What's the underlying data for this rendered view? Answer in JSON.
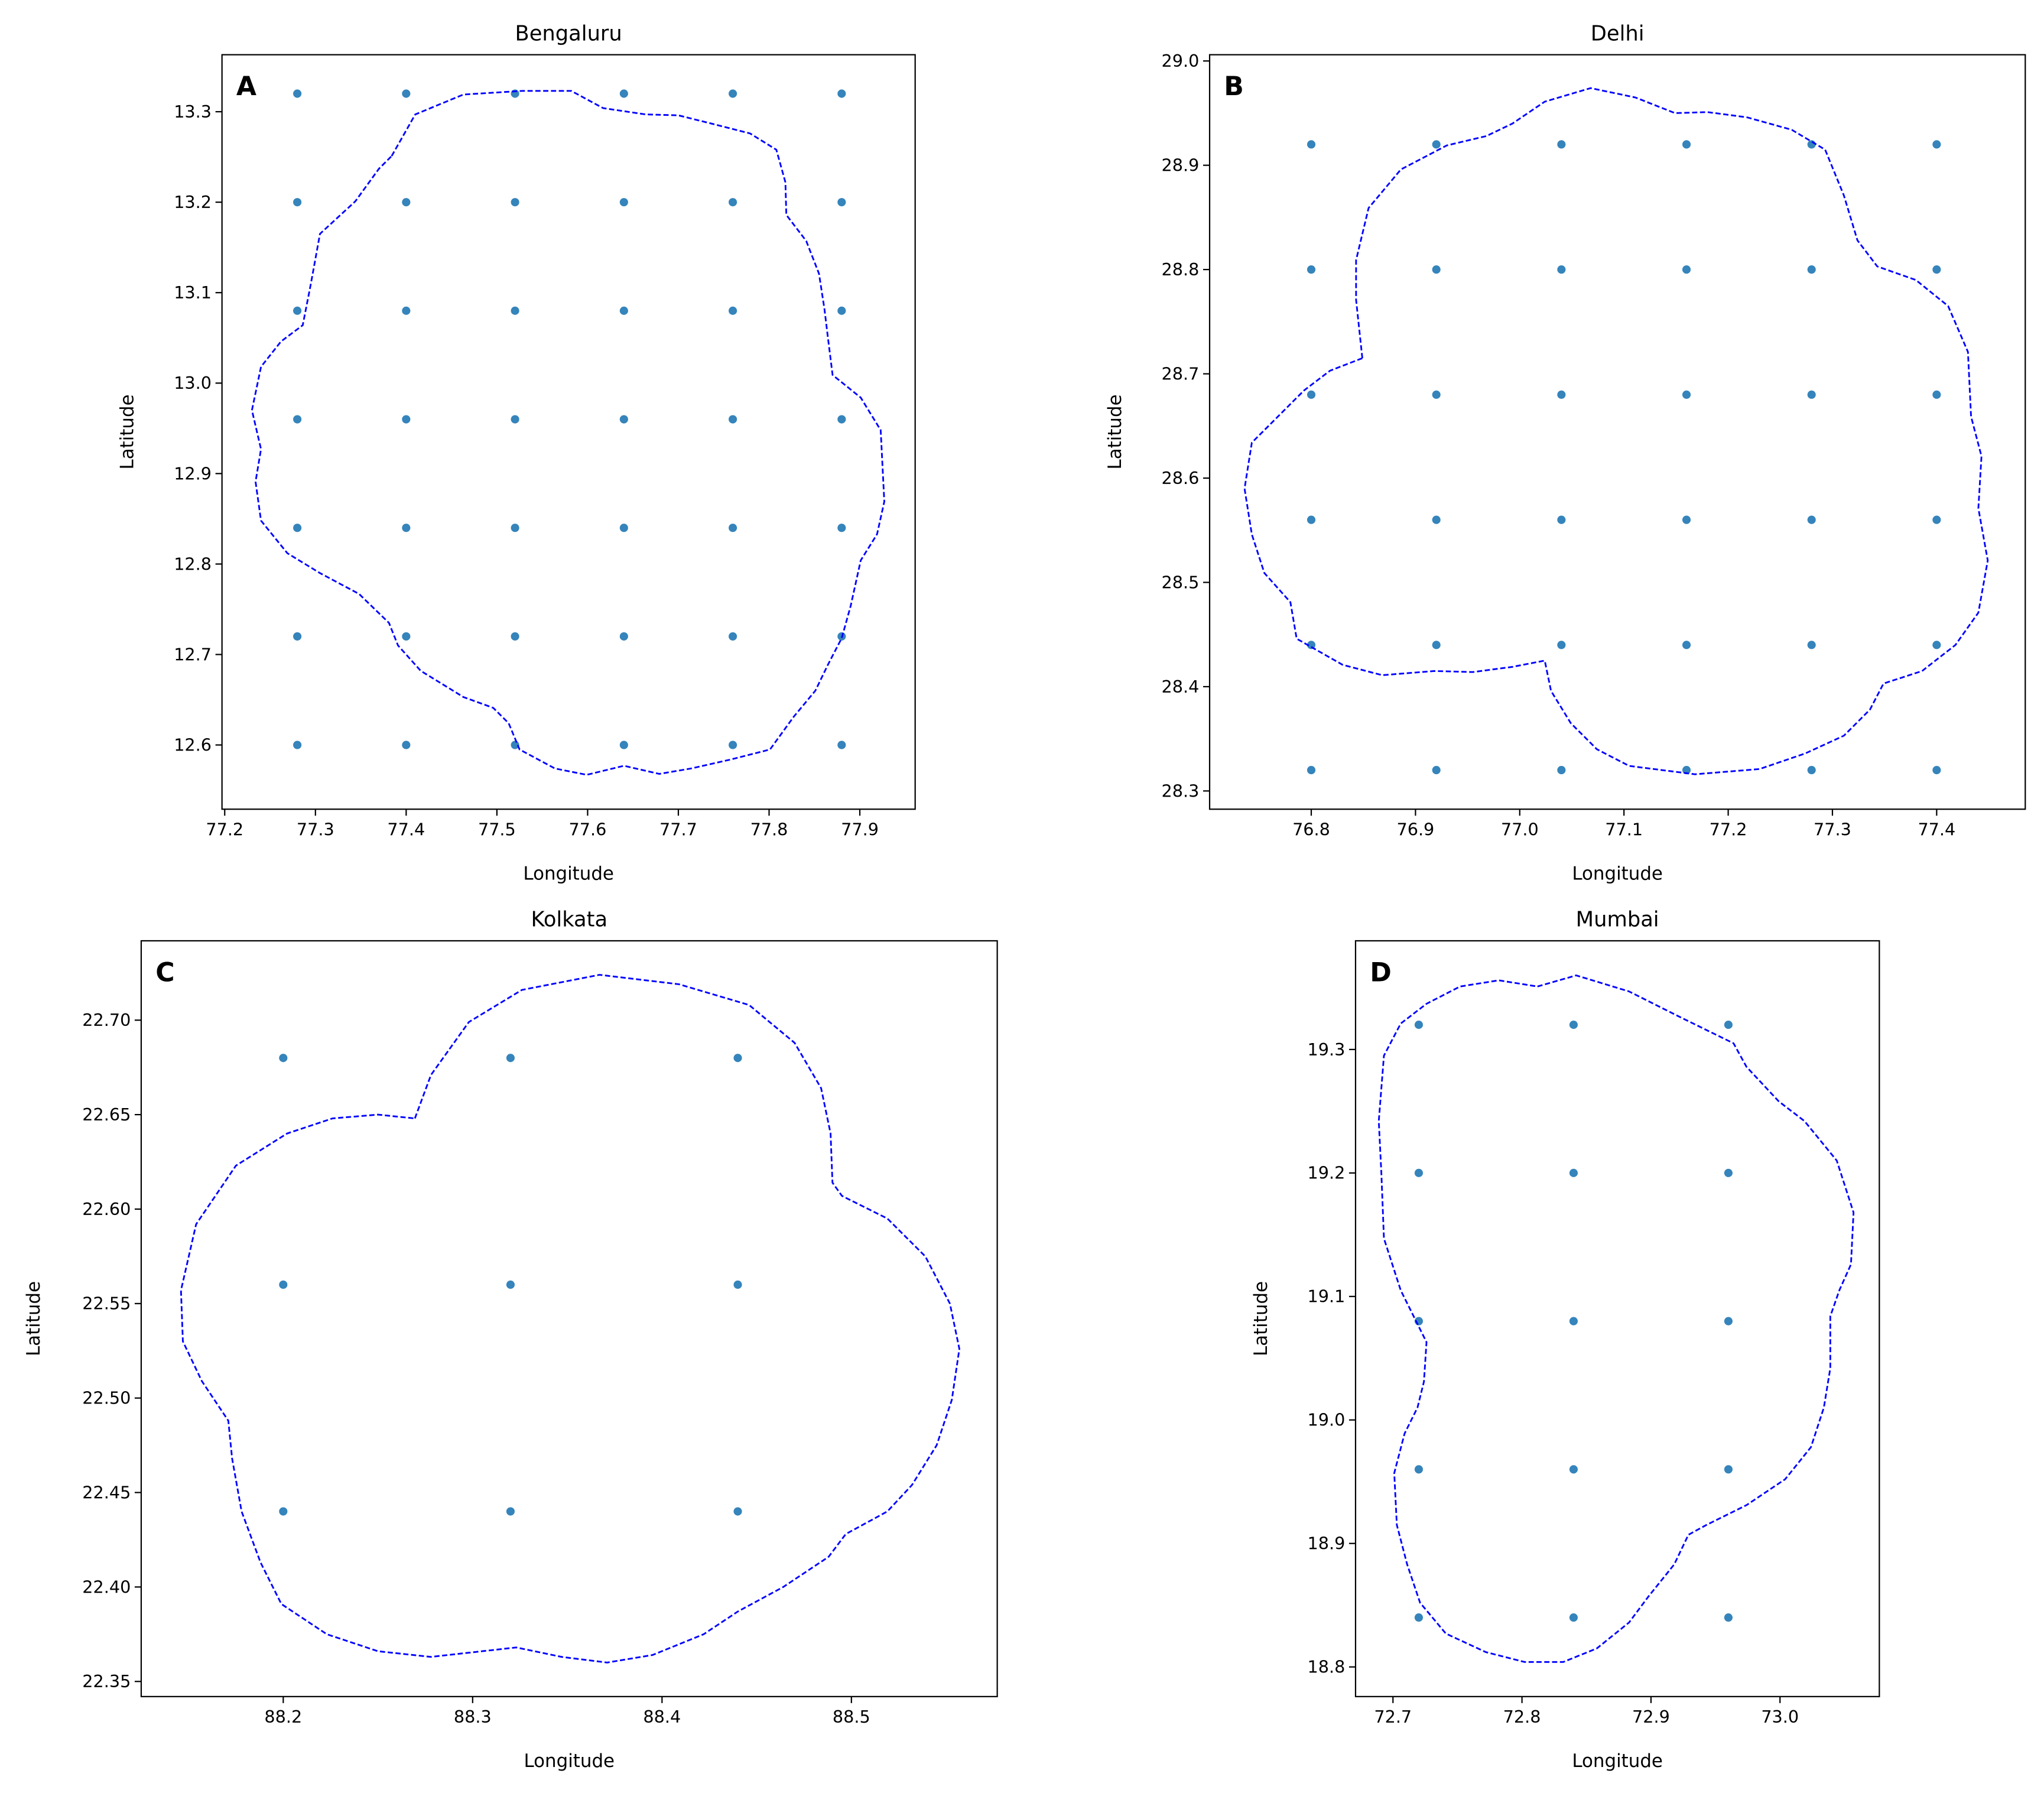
{
  "chart_data": [
    {
      "type": "scatter",
      "label": "A",
      "title": "Bengaluru",
      "xlabel": "Longitude",
      "ylabel": "Latitude",
      "xlim": [
        77.197,
        77.961
      ],
      "ylim": [
        12.529,
        13.363
      ],
      "xticks": [
        77.2,
        77.3,
        77.4,
        77.5,
        77.6,
        77.7,
        77.8,
        77.9
      ],
      "yticks": [
        12.6,
        12.7,
        12.8,
        12.9,
        {
          "value": 13,
          "label": "13.0"
        },
        13.1,
        13.2,
        13.3
      ],
      "series": [
        {
          "color": "#1f77b4",
          "marker": "o",
          "x": [
            77.28,
            77.4,
            77.52,
            77.64,
            77.76,
            77.88,
            77.28,
            77.4,
            77.52,
            77.64,
            77.76,
            77.88,
            77.28,
            77.4,
            77.52,
            77.64,
            77.76,
            77.88,
            77.28,
            77.4,
            77.52,
            77.64,
            77.76,
            77.88,
            77.28,
            77.4,
            77.52,
            77.64,
            77.76,
            77.88,
            77.28,
            77.4,
            77.52,
            77.64,
            77.76,
            77.88,
            77.28,
            77.4,
            77.52,
            77.64,
            77.76,
            77.88
          ],
          "values": [
            13.32,
            13.32,
            13.32,
            13.32,
            13.32,
            13.32,
            13.2,
            13.2,
            13.2,
            13.2,
            13.2,
            13.2,
            13.08,
            13.08,
            13.08,
            13.08,
            13.08,
            13.08,
            12.96,
            12.96,
            12.96,
            12.96,
            12.96,
            12.96,
            12.84,
            12.84,
            12.84,
            12.84,
            12.84,
            12.84,
            12.72,
            12.72,
            12.72,
            12.72,
            12.72,
            12.72,
            12.6,
            12.6,
            12.6,
            12.6,
            12.6,
            12.6
          ]
        },
        {
          "color": "blue",
          "linestyle": "--",
          "x": [
            77.384,
            77.41,
            77.463,
            77.528,
            77.582,
            77.617,
            77.664,
            77.7,
            77.736,
            77.779,
            77.808,
            77.818,
            77.819,
            77.841,
            77.855,
            77.861,
            77.865,
            77.87,
            77.901,
            77.923,
            77.927,
            77.919,
            77.901,
            77.89,
            77.88,
            77.865,
            77.851,
            77.827,
            77.801,
            77.758,
            77.714,
            77.679,
            77.64,
            77.599,
            77.564,
            77.525,
            77.513,
            77.496,
            77.463,
            77.416,
            77.391,
            77.381,
            77.348,
            77.305,
            77.269,
            77.24,
            77.234,
            77.24,
            77.23,
            77.24,
            77.262,
            77.286,
            77.295,
            77.305,
            77.344,
            77.37
          ],
          "values": [
            13.251,
            13.297,
            13.319,
            13.323,
            13.323,
            13.304,
            13.297,
            13.296,
            13.287,
            13.276,
            13.258,
            13.222,
            13.186,
            13.157,
            13.121,
            13.082,
            13.049,
            13.009,
            12.984,
            12.948,
            12.869,
            12.833,
            12.804,
            12.754,
            12.718,
            12.689,
            12.66,
            12.631,
            12.595,
            12.584,
            12.574,
            12.568,
            12.577,
            12.567,
            12.574,
            12.595,
            12.624,
            12.641,
            12.653,
            12.682,
            12.71,
            12.735,
            12.767,
            12.79,
            12.812,
            12.848,
            12.891,
            12.927,
            12.97,
            13.018,
            13.046,
            13.064,
            13.11,
            13.165,
            13.201,
            13.237
          ]
        }
      ]
    },
    {
      "type": "scatter",
      "label": "B",
      "title": "Delhi",
      "xlabel": "Longitude",
      "ylabel": "Latitude",
      "xlim": [
        76.7025,
        77.485
      ],
      "ylim": [
        28.2825,
        29.006
      ],
      "xticks": [
        76.8,
        76.9,
        {
          "value": 77,
          "label": "77.0"
        },
        77.1,
        77.2,
        77.3,
        77.4
      ],
      "yticks": [
        28.3,
        28.4,
        28.5,
        28.6,
        28.7,
        28.8,
        28.9,
        {
          "value": 29,
          "label": "29.0"
        }
      ],
      "series": [
        {
          "color": "#1f77b4",
          "marker": "o",
          "x": [
            76.8,
            76.92,
            77.04,
            77.16,
            77.28,
            77.4,
            76.8,
            76.92,
            77.04,
            77.16,
            77.28,
            77.4,
            76.8,
            76.92,
            77.04,
            77.16,
            77.28,
            77.4,
            76.8,
            76.92,
            77.04,
            77.16,
            77.28,
            77.4,
            76.8,
            76.92,
            77.04,
            77.16,
            77.28,
            77.4,
            76.8,
            76.92,
            77.04,
            77.16,
            77.28,
            77.4
          ],
          "values": [
            28.92,
            28.92,
            28.92,
            28.92,
            28.92,
            28.92,
            28.8,
            28.8,
            28.8,
            28.8,
            28.8,
            28.8,
            28.68,
            28.68,
            28.68,
            28.68,
            28.68,
            28.68,
            28.56,
            28.56,
            28.56,
            28.56,
            28.56,
            28.56,
            28.44,
            28.44,
            28.44,
            28.44,
            28.44,
            28.44,
            28.32,
            28.32,
            28.32,
            28.32,
            28.32,
            28.32
          ]
        },
        {
          "color": "blue",
          "linestyle": "--",
          "x": [
            76.849,
            76.843,
            76.843,
            76.855,
            76.886,
            76.93,
            76.968,
            76.993,
            77.024,
            77.068,
            77.111,
            77.149,
            77.18,
            77.218,
            77.261,
            77.293,
            77.311,
            77.324,
            77.343,
            77.38,
            77.411,
            77.43,
            77.433,
            77.443,
            77.44,
            77.449,
            77.44,
            77.418,
            77.386,
            77.349,
            77.336,
            77.311,
            77.274,
            77.23,
            77.168,
            77.105,
            77.074,
            77.049,
            77.03,
            77.024,
            76.993,
            76.955,
            76.918,
            76.868,
            76.83,
            76.786,
            76.78,
            76.755,
            76.743,
            76.736,
            76.743,
            76.768,
            76.793,
            76.818
          ],
          "values": [
            28.715,
            28.771,
            28.809,
            28.859,
            28.896,
            28.919,
            28.928,
            28.94,
            28.961,
            28.974,
            28.965,
            28.95,
            28.951,
            28.946,
            28.934,
            28.915,
            28.871,
            28.828,
            28.803,
            28.79,
            28.765,
            28.721,
            28.659,
            28.621,
            28.571,
            28.521,
            28.471,
            28.44,
            28.415,
            28.403,
            28.378,
            28.353,
            28.336,
            28.321,
            28.316,
            28.324,
            28.34,
            28.365,
            28.396,
            28.425,
            28.419,
            28.414,
            28.415,
            28.411,
            28.421,
            28.446,
            28.481,
            28.509,
            28.546,
            28.59,
            28.634,
            28.659,
            28.684,
            28.703
          ]
        }
      ]
    },
    {
      "type": "scatter",
      "label": "C",
      "title": "Kolkata",
      "xlabel": "Longitude",
      "ylabel": "Latitude",
      "xlim": [
        88.125,
        88.577
      ],
      "ylim": [
        22.342,
        22.742
      ],
      "xticks": [
        88.2,
        88.3,
        88.4,
        88.5
      ],
      "yticks": [
        22.35,
        {
          "value": 22.4,
          "label": "22.40"
        },
        22.45,
        {
          "value": 22.5,
          "label": "22.50"
        },
        22.55,
        {
          "value": 22.6,
          "label": "22.60"
        },
        22.65,
        {
          "value": 22.7,
          "label": "22.70"
        }
      ],
      "series": [
        {
          "color": "#1f77b4",
          "marker": "o",
          "x": [
            88.2,
            88.32,
            88.44,
            88.2,
            88.32,
            88.44,
            88.2,
            88.32,
            88.44
          ],
          "values": [
            22.68,
            22.68,
            22.68,
            22.56,
            22.56,
            22.56,
            22.44,
            22.44,
            22.44
          ]
        },
        {
          "color": "blue",
          "linestyle": "--",
          "x": [
            88.2695,
            88.278,
            88.298,
            88.326,
            88.367,
            88.409,
            88.446,
            88.47,
            88.484,
            88.489,
            88.49,
            88.495,
            88.519,
            88.539,
            88.552,
            88.557,
            88.553,
            88.545,
            88.532,
            88.519,
            88.497,
            88.488,
            88.464,
            88.44,
            88.422,
            88.395,
            88.371,
            88.347,
            88.323,
            88.305,
            88.278,
            88.25,
            88.223,
            88.199,
            88.188,
            88.178,
            88.173,
            88.171,
            88.157,
            88.147,
            88.146,
            88.154,
            88.175,
            88.202,
            88.226,
            88.25
          ],
          "values": [
            22.648,
            22.671,
            22.699,
            22.716,
            22.724,
            22.719,
            22.708,
            22.688,
            22.664,
            22.64,
            22.614,
            22.607,
            22.595,
            22.575,
            22.55,
            22.526,
            22.499,
            22.475,
            22.454,
            22.44,
            22.428,
            22.416,
            22.4,
            22.387,
            22.375,
            22.364,
            22.36,
            22.363,
            22.368,
            22.366,
            22.363,
            22.366,
            22.375,
            22.391,
            22.413,
            22.44,
            22.468,
            22.488,
            22.509,
            22.53,
            22.557,
            22.592,
            22.623,
            22.64,
            22.648,
            22.65
          ]
        }
      ]
    },
    {
      "type": "scatter",
      "label": "D",
      "title": "Mumbai",
      "xlabel": "Longitude",
      "ylabel": "Latitude",
      "xlim": [
        72.671,
        73.077
      ],
      "ylim": [
        18.776,
        19.388
      ],
      "xticks": [
        72.7,
        72.8,
        72.9,
        {
          "value": 73,
          "label": "73.0"
        }
      ],
      "yticks": [
        18.8,
        18.9,
        {
          "value": 19,
          "label": "19.0"
        },
        19.1,
        19.2,
        19.3
      ],
      "series": [
        {
          "color": "#1f77b4",
          "marker": "o",
          "x": [
            72.72,
            72.84,
            72.96,
            72.72,
            72.84,
            72.96,
            72.72,
            72.84,
            72.96,
            72.72,
            72.84,
            72.96,
            72.72,
            72.84,
            72.96
          ],
          "values": [
            19.32,
            19.32,
            19.32,
            19.2,
            19.2,
            19.2,
            19.08,
            19.08,
            19.08,
            18.96,
            18.96,
            18.96,
            18.84,
            18.84,
            18.84
          ]
        },
        {
          "color": "blue",
          "linestyle": "--",
          "x": [
            72.812,
            72.842,
            72.883,
            72.923,
            72.964,
            72.974,
            72.999,
            73.019,
            73.044,
            73.057,
            73.055,
            73.046,
            73.039,
            73.039,
            73.034,
            73.024,
            73.004,
            72.974,
            72.943,
            72.929,
            72.918,
            72.898,
            72.883,
            72.858,
            72.832,
            72.802,
            72.772,
            72.741,
            72.721,
            72.711,
            72.703,
            72.701,
            72.709,
            72.719,
            72.724,
            72.726,
            72.716,
            72.706,
            72.693,
            72.691,
            72.689,
            72.693,
            72.706,
            72.726,
            72.752,
            72.782
          ],
          "values": [
            19.351,
            19.36,
            19.347,
            19.326,
            19.305,
            19.286,
            19.258,
            19.242,
            19.21,
            19.168,
            19.126,
            19.105,
            19.084,
            19.042,
            19.01,
            18.978,
            18.952,
            18.931,
            18.915,
            18.907,
            18.883,
            18.857,
            18.836,
            18.815,
            18.804,
            18.804,
            18.812,
            18.827,
            18.852,
            18.883,
            18.915,
            18.957,
            18.989,
            19.01,
            19.031,
            19.063,
            19.084,
            19.105,
            19.147,
            19.2,
            19.242,
            19.295,
            19.321,
            19.337,
            19.351,
            19.356
          ]
        }
      ]
    }
  ]
}
